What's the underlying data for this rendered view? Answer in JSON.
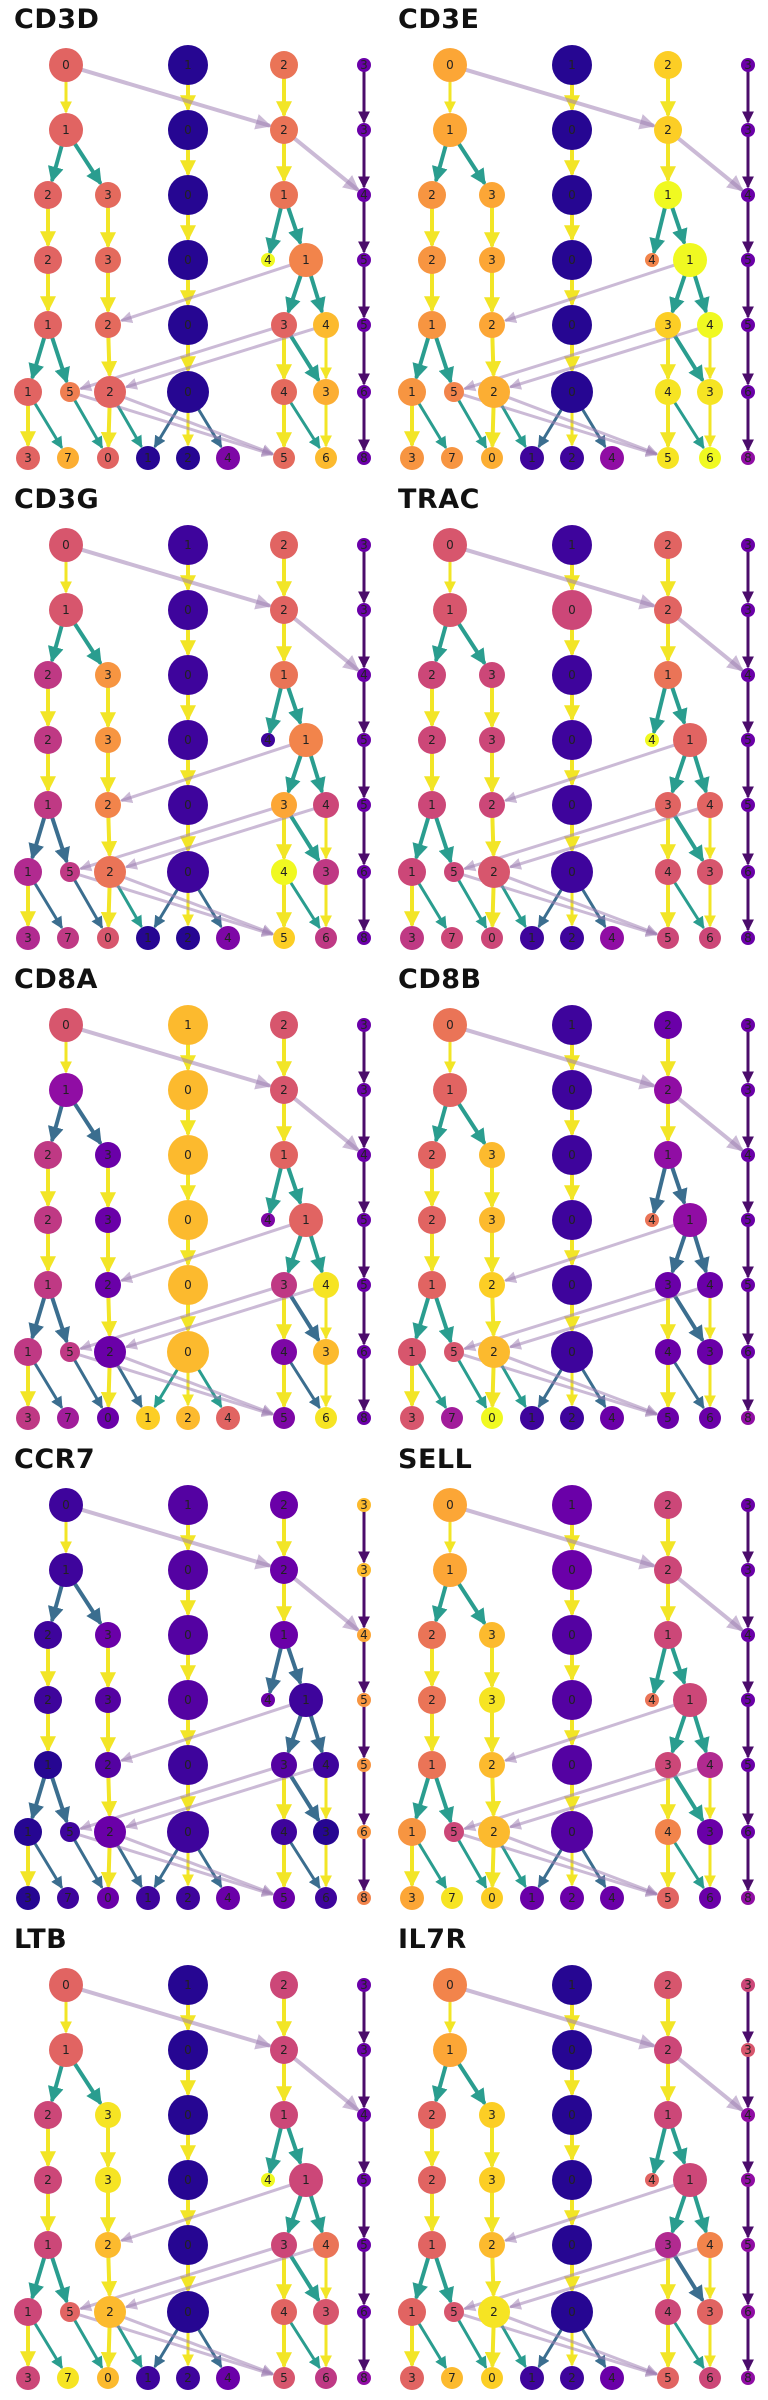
{
  "chart_data": {
    "type": "tree",
    "color_scale": [
      "#0d0887",
      "#3e049c",
      "#6a00a8",
      "#900da4",
      "#b12a90",
      "#cc4778",
      "#e16462",
      "#f2844b",
      "#fca636",
      "#fcce25",
      "#f0f921"
    ],
    "levels": [
      [
        "0",
        "1",
        "2",
        "3"
      ],
      [
        "1",
        "0",
        "2",
        "3"
      ],
      [
        "2",
        "3",
        "0",
        "1",
        "4"
      ],
      [
        "2",
        "3",
        "0",
        "4",
        "1",
        "5"
      ],
      [
        "1",
        "2",
        "0",
        "3",
        "4",
        "5"
      ],
      [
        "1",
        "5",
        "2",
        "0",
        "4",
        "3",
        "6"
      ],
      [
        "3",
        "7",
        "0",
        "1",
        "2",
        "4",
        "5",
        "6",
        "8"
      ]
    ],
    "panels": [
      {
        "title": "CD3D",
        "levels": [
          [
            0.6,
            0.05,
            0.65,
            0.2
          ],
          [
            0.6,
            0.05,
            0.65,
            0.2
          ],
          [
            0.6,
            0.62,
            0.05,
            0.65,
            0.2
          ],
          [
            0.6,
            0.62,
            0.05,
            1.0,
            0.7,
            0.2
          ],
          [
            0.6,
            0.62,
            0.05,
            0.6,
            0.85,
            0.2
          ],
          [
            0.6,
            0.68,
            0.6,
            0.05,
            0.62,
            0.82,
            0.2
          ],
          [
            0.6,
            0.82,
            0.6,
            0.05,
            0.05,
            0.25,
            0.62,
            0.85,
            0.2
          ]
        ]
      },
      {
        "title": "CD3E",
        "levels": [
          [
            0.8,
            0.05,
            0.9,
            0.2
          ],
          [
            0.8,
            0.05,
            0.9,
            0.2
          ],
          [
            0.75,
            0.8,
            0.05,
            1.0,
            0.2
          ],
          [
            0.75,
            0.8,
            0.05,
            0.7,
            1.0,
            0.2
          ],
          [
            0.75,
            0.8,
            0.05,
            0.9,
            1.0,
            0.2
          ],
          [
            0.75,
            0.7,
            0.82,
            0.05,
            0.95,
            0.95,
            0.2
          ],
          [
            0.75,
            0.75,
            0.82,
            0.1,
            0.1,
            0.3,
            0.95,
            1.0,
            0.3
          ]
        ]
      },
      {
        "title": "CD3G",
        "levels": [
          [
            0.55,
            0.1,
            0.6,
            0.2
          ],
          [
            0.55,
            0.1,
            0.6,
            0.2
          ],
          [
            0.45,
            0.75,
            0.1,
            0.65,
            0.2
          ],
          [
            0.45,
            0.75,
            0.1,
            0.1,
            0.7,
            0.2
          ],
          [
            0.45,
            0.7,
            0.1,
            0.8,
            0.5,
            0.2
          ],
          [
            0.4,
            0.45,
            0.65,
            0.1,
            1.0,
            0.45,
            0.2
          ],
          [
            0.4,
            0.45,
            0.55,
            0.05,
            0.05,
            0.25,
            0.9,
            0.45,
            0.2
          ]
        ]
      },
      {
        "title": "TRAC",
        "levels": [
          [
            0.55,
            0.1,
            0.6,
            0.2
          ],
          [
            0.55,
            0.5,
            0.6,
            0.2
          ],
          [
            0.5,
            0.5,
            0.1,
            0.65,
            0.2
          ],
          [
            0.5,
            0.5,
            0.1,
            1.0,
            0.6,
            0.2
          ],
          [
            0.5,
            0.5,
            0.1,
            0.6,
            0.6,
            0.2
          ],
          [
            0.5,
            0.5,
            0.55,
            0.1,
            0.55,
            0.55,
            0.2
          ],
          [
            0.45,
            0.5,
            0.5,
            0.1,
            0.1,
            0.3,
            0.5,
            0.5,
            0.2
          ]
        ]
      },
      {
        "title": "CD8A",
        "levels": [
          [
            0.55,
            0.85,
            0.55,
            0.2
          ],
          [
            0.3,
            0.85,
            0.55,
            0.2
          ],
          [
            0.45,
            0.2,
            0.85,
            0.6,
            0.2
          ],
          [
            0.45,
            0.2,
            0.85,
            0.25,
            0.6,
            0.2
          ],
          [
            0.45,
            0.2,
            0.85,
            0.45,
            0.95,
            0.2
          ],
          [
            0.45,
            0.45,
            0.2,
            0.85,
            0.25,
            0.85,
            0.2
          ],
          [
            0.45,
            0.35,
            0.2,
            0.9,
            0.85,
            0.6,
            0.25,
            0.95,
            0.2
          ]
        ]
      },
      {
        "title": "CD8B",
        "levels": [
          [
            0.65,
            0.1,
            0.2,
            0.2
          ],
          [
            0.6,
            0.1,
            0.3,
            0.2
          ],
          [
            0.6,
            0.85,
            0.1,
            0.3,
            0.2
          ],
          [
            0.6,
            0.85,
            0.1,
            0.65,
            0.3,
            0.2
          ],
          [
            0.6,
            0.9,
            0.1,
            0.2,
            0.2,
            0.2
          ],
          [
            0.55,
            0.55,
            0.85,
            0.1,
            0.2,
            0.2,
            0.2
          ],
          [
            0.55,
            0.35,
            1.0,
            0.1,
            0.1,
            0.2,
            0.2,
            0.2,
            0.3
          ]
        ]
      },
      {
        "title": "CCR7",
        "levels": [
          [
            0.1,
            0.15,
            0.2,
            0.85
          ],
          [
            0.1,
            0.15,
            0.2,
            0.85
          ],
          [
            0.1,
            0.2,
            0.15,
            0.2,
            0.8
          ],
          [
            0.1,
            0.15,
            0.15,
            0.2,
            0.1,
            0.75
          ],
          [
            0.05,
            0.15,
            0.1,
            0.15,
            0.1,
            0.75
          ],
          [
            0.05,
            0.1,
            0.2,
            0.1,
            0.1,
            0.05,
            0.75
          ],
          [
            0.05,
            0.1,
            0.2,
            0.1,
            0.1,
            0.2,
            0.2,
            0.1,
            0.7
          ]
        ]
      },
      {
        "title": "SELL",
        "levels": [
          [
            0.8,
            0.2,
            0.5,
            0.2
          ],
          [
            0.8,
            0.2,
            0.5,
            0.2
          ],
          [
            0.65,
            0.85,
            0.15,
            0.5,
            0.2
          ],
          [
            0.65,
            0.95,
            0.15,
            0.65,
            0.5,
            0.2
          ],
          [
            0.65,
            0.85,
            0.15,
            0.5,
            0.4,
            0.2
          ],
          [
            0.75,
            0.5,
            0.85,
            0.15,
            0.7,
            0.2,
            0.2
          ],
          [
            0.8,
            0.95,
            0.9,
            0.2,
            0.2,
            0.2,
            0.6,
            0.2,
            0.3
          ]
        ]
      },
      {
        "title": "LTB",
        "levels": [
          [
            0.6,
            0.05,
            0.5,
            0.2
          ],
          [
            0.6,
            0.05,
            0.5,
            0.2
          ],
          [
            0.5,
            0.95,
            0.05,
            0.5,
            0.2
          ],
          [
            0.5,
            0.95,
            0.05,
            1.0,
            0.5,
            0.2
          ],
          [
            0.5,
            0.85,
            0.05,
            0.5,
            0.65,
            0.2
          ],
          [
            0.5,
            0.6,
            0.85,
            0.05,
            0.6,
            0.55,
            0.2
          ],
          [
            0.5,
            0.95,
            0.85,
            0.1,
            0.1,
            0.2,
            0.55,
            0.45,
            0.3
          ]
        ]
      },
      {
        "title": "IL7R",
        "levels": [
          [
            0.7,
            0.05,
            0.55,
            0.5
          ],
          [
            0.8,
            0.05,
            0.5,
            0.55
          ],
          [
            0.6,
            0.9,
            0.05,
            0.5,
            0.3
          ],
          [
            0.6,
            0.9,
            0.05,
            0.6,
            0.5,
            0.3
          ],
          [
            0.6,
            0.85,
            0.05,
            0.4,
            0.7,
            0.3
          ],
          [
            0.6,
            0.55,
            0.95,
            0.05,
            0.5,
            0.6,
            0.3
          ],
          [
            0.6,
            0.85,
            0.9,
            0.1,
            0.1,
            0.2,
            0.6,
            0.5,
            0.3
          ]
        ]
      }
    ]
  }
}
